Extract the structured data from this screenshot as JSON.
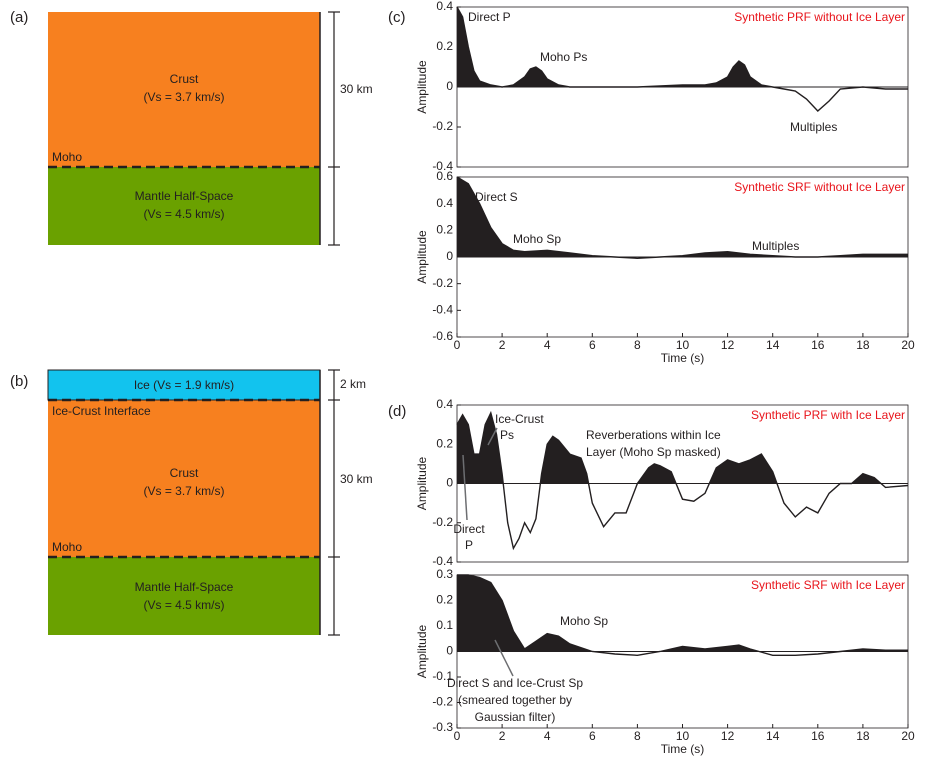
{
  "panel_labels": [
    "(a)",
    "(b)",
    "(c)",
    "(d)"
  ],
  "diagram_a": {
    "layers": [
      {
        "name": "Crust",
        "velocity": "(Vs = 3.7 km/s)"
      },
      {
        "name": "Mantle Half-Space",
        "velocity": "(Vs = 4.5 km/s)"
      }
    ],
    "interfaces": [
      "Moho"
    ],
    "thickness": [
      "30 km"
    ]
  },
  "diagram_b": {
    "layers": [
      {
        "name": "Ice (Vs = 1.9 km/s)"
      },
      {
        "name": "Crust",
        "velocity": "(Vs = 3.7 km/s)"
      },
      {
        "name": "Mantle Half-Space",
        "velocity": "(Vs = 4.5 km/s)"
      }
    ],
    "interfaces": [
      "Ice-Crust Interface",
      "Moho"
    ],
    "thickness": [
      "2 km",
      "30 km"
    ]
  },
  "chart_data": [
    {
      "type": "line",
      "title": "Synthetic PRF without Ice Layer",
      "ylabel": "Amplitude",
      "fill_positive": true,
      "color": "#231f20",
      "annotations": [
        "Direct P",
        "Moho Ps",
        "Multiples"
      ],
      "xlim": [
        0,
        20
      ],
      "ylim": [
        -0.4,
        0.4
      ],
      "yticks": [
        -0.4,
        -0.2,
        0,
        0.2,
        0.4
      ],
      "x": [
        0,
        0.25,
        0.5,
        0.75,
        1,
        1.5,
        2,
        2.5,
        3,
        3.25,
        3.5,
        3.75,
        4,
        4.5,
        5,
        6,
        7,
        8,
        9,
        10,
        11,
        11.5,
        12,
        12.25,
        12.5,
        12.75,
        13,
        13.5,
        14,
        14.5,
        15,
        15.5,
        16,
        16.5,
        17,
        18,
        19,
        20
      ],
      "values": [
        0.4,
        0.35,
        0.2,
        0.08,
        0.03,
        0.01,
        0,
        0.01,
        0.05,
        0.09,
        0.1,
        0.08,
        0.04,
        0.01,
        0,
        0,
        0,
        0,
        0.005,
        0.01,
        0.01,
        0.02,
        0.05,
        0.1,
        0.13,
        0.11,
        0.05,
        0.01,
        0,
        -0.01,
        -0.02,
        -0.06,
        -0.12,
        -0.07,
        -0.01,
        0,
        -0.01,
        -0.01
      ]
    },
    {
      "type": "line",
      "title": "Synthetic SRF without Ice Layer",
      "ylabel": "Amplitude",
      "xlabel": "Time (s)",
      "fill_positive": true,
      "color": "#231f20",
      "annotations": [
        "Direct S",
        "Moho Sp",
        "Multiples"
      ],
      "xlim": [
        0,
        20
      ],
      "xticks": [
        0,
        2,
        4,
        6,
        8,
        10,
        12,
        14,
        16,
        18,
        20
      ],
      "ylim": [
        -0.6,
        0.6
      ],
      "yticks": [
        -0.6,
        -0.4,
        -0.2,
        0,
        0.2,
        0.4,
        0.6
      ],
      "x": [
        0,
        0.5,
        1,
        1.5,
        2,
        2.5,
        3,
        4,
        5,
        6,
        7,
        8,
        9,
        10,
        11,
        12,
        13,
        14,
        15,
        16,
        17,
        18,
        19,
        20
      ],
      "values": [
        0.6,
        0.55,
        0.4,
        0.22,
        0.1,
        0.05,
        0.04,
        0.05,
        0.03,
        0.01,
        0,
        -0.01,
        0,
        0.01,
        0.03,
        0.04,
        0.02,
        0.01,
        0,
        0,
        0.01,
        0.02,
        0.02,
        0.02
      ]
    },
    {
      "type": "line",
      "title": "Synthetic PRF with Ice Layer",
      "ylabel": "Amplitude",
      "fill_positive": true,
      "color": "#231f20",
      "annotations": [
        "Ice-Crust",
        "Ps",
        "Reverberations within Ice",
        "Layer (Moho Sp masked)",
        "Direct",
        "P"
      ],
      "xlim": [
        0,
        20
      ],
      "ylim": [
        -0.4,
        0.4
      ],
      "yticks": [
        -0.4,
        -0.2,
        0,
        0.2,
        0.4
      ],
      "x": [
        0,
        0.25,
        0.5,
        0.75,
        1,
        1.25,
        1.5,
        1.75,
        2,
        2.25,
        2.5,
        2.75,
        3,
        3.25,
        3.5,
        3.75,
        4,
        4.25,
        4.5,
        5,
        5.5,
        5.75,
        6,
        6.5,
        7,
        7.5,
        8,
        8.5,
        8.75,
        9,
        9.5,
        10,
        10.5,
        11,
        11.5,
        12,
        12.5,
        13,
        13.5,
        14,
        14.5,
        15,
        15.5,
        16,
        16.5,
        17,
        17.5,
        18,
        18.5,
        19,
        20
      ],
      "values": [
        0.3,
        0.35,
        0.3,
        0.15,
        0.15,
        0.3,
        0.36,
        0.25,
        0.05,
        -0.2,
        -0.33,
        -0.28,
        -0.2,
        -0.25,
        -0.18,
        0.05,
        0.2,
        0.24,
        0.22,
        0.15,
        0.13,
        0.05,
        -0.1,
        -0.22,
        -0.15,
        -0.15,
        0,
        0.08,
        0.1,
        0.09,
        0.06,
        -0.08,
        -0.09,
        -0.05,
        0.08,
        0.12,
        0.1,
        0.12,
        0.15,
        0.06,
        -0.1,
        -0.17,
        -0.12,
        -0.15,
        -0.05,
        0,
        0,
        0.05,
        0.03,
        -0.02,
        -0.01
      ]
    },
    {
      "type": "line",
      "title": "Synthetic SRF with Ice Layer",
      "ylabel": "Amplitude",
      "xlabel": "Time (s)",
      "fill_positive": true,
      "color": "#231f20",
      "annotations": [
        "Moho Sp",
        "Direct S and Ice-Crust Sp",
        "(smeared together by",
        "Gaussian filter)"
      ],
      "xlim": [
        0,
        20
      ],
      "xticks": [
        0,
        2,
        4,
        6,
        8,
        10,
        12,
        14,
        16,
        18,
        20
      ],
      "ylim": [
        -0.3,
        0.3
      ],
      "yticks": [
        -0.3,
        -0.2,
        -0.1,
        0,
        0.1,
        0.2,
        0.3
      ],
      "x": [
        0,
        0.5,
        1,
        1.5,
        2,
        2.5,
        3,
        3.5,
        4,
        4.5,
        5,
        6,
        7,
        8,
        9,
        10,
        11,
        12,
        12.5,
        13,
        14,
        15,
        16,
        17,
        18,
        19,
        20
      ],
      "values": [
        0.3,
        0.3,
        0.29,
        0.27,
        0.2,
        0.08,
        0.01,
        0.04,
        0.07,
        0.06,
        0.03,
        0,
        -0.01,
        -0.015,
        0,
        0.02,
        0.01,
        0.02,
        0.025,
        0.01,
        -0.015,
        -0.015,
        -0.01,
        0,
        0.01,
        0.005,
        0.005
      ]
    }
  ]
}
